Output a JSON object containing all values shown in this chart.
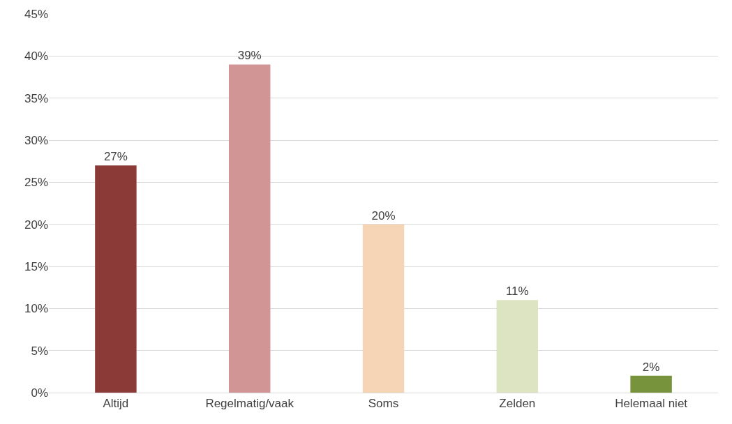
{
  "chart_data": {
    "type": "bar",
    "categories": [
      "Altijd",
      "Regelmatig/vaak",
      "Soms",
      "Zelden",
      "Helemaal niet"
    ],
    "values": [
      27,
      39,
      20,
      11,
      2
    ],
    "colors": [
      "#8b3a37",
      "#d09594",
      "#f6d5b6",
      "#dce4c2",
      "#77933c"
    ],
    "value_labels": [
      "27%",
      "39%",
      "20%",
      "11%",
      "2%"
    ],
    "ylim": [
      0,
      45
    ],
    "yticks": [
      {
        "value": 0,
        "label": "0%"
      },
      {
        "value": 5,
        "label": "5%"
      },
      {
        "value": 10,
        "label": "10%"
      },
      {
        "value": 15,
        "label": "15%"
      },
      {
        "value": 20,
        "label": "20%"
      },
      {
        "value": 25,
        "label": "25%"
      },
      {
        "value": 30,
        "label": "30%"
      },
      {
        "value": 35,
        "label": "35%"
      },
      {
        "value": 40,
        "label": "40%"
      },
      {
        "value": 45,
        "label": "45%"
      }
    ],
    "grid": "y",
    "legend": false
  }
}
